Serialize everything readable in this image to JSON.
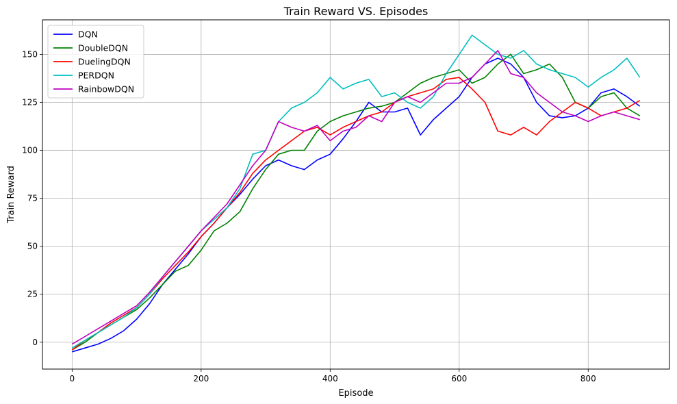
{
  "chart_data": {
    "type": "line",
    "title": "Train Reward VS. Episodes",
    "xlabel": "Episode",
    "ylabel": "Train Reward",
    "xlim": [
      -46,
      926
    ],
    "ylim": [
      -14,
      168
    ],
    "xticks": [
      0,
      200,
      400,
      600,
      800
    ],
    "yticks": [
      0,
      25,
      50,
      75,
      100,
      125,
      150
    ],
    "grid": true,
    "legend_position": "upper-left",
    "series": [
      {
        "name": "DQN",
        "color": "#0000ff",
        "x": [
          0,
          20,
          40,
          60,
          80,
          100,
          120,
          140,
          160,
          180,
          200,
          220,
          240,
          260,
          280,
          300,
          320,
          340,
          360,
          380,
          400,
          420,
          440,
          460,
          480,
          500,
          520,
          540,
          560,
          580,
          600,
          620,
          640,
          660,
          680,
          700,
          720,
          740,
          760,
          780,
          800,
          820,
          840,
          860,
          880
        ],
        "y": [
          -5,
          -3,
          -1,
          2,
          6,
          12,
          20,
          30,
          38,
          46,
          55,
          62,
          70,
          77,
          85,
          92,
          95,
          92,
          90,
          95,
          98,
          106,
          115,
          125,
          120,
          120,
          122,
          108,
          116,
          122,
          128,
          138,
          145,
          148,
          145,
          138,
          125,
          118,
          117,
          118,
          122,
          130,
          132,
          128,
          123
        ]
      },
      {
        "name": "DoubleDQN",
        "color": "#008000",
        "x": [
          0,
          20,
          40,
          60,
          80,
          100,
          120,
          140,
          160,
          180,
          200,
          220,
          240,
          260,
          280,
          300,
          320,
          340,
          360,
          380,
          400,
          420,
          440,
          460,
          480,
          500,
          520,
          540,
          560,
          580,
          600,
          620,
          640,
          660,
          680,
          700,
          720,
          740,
          760,
          780,
          800,
          820,
          840,
          860,
          880
        ],
        "y": [
          -4,
          0,
          5,
          9,
          13,
          17,
          23,
          30,
          37,
          40,
          48,
          58,
          62,
          68,
          80,
          90,
          98,
          100,
          100,
          110,
          115,
          118,
          120,
          122,
          123,
          125,
          130,
          135,
          138,
          140,
          142,
          135,
          138,
          145,
          150,
          140,
          142,
          145,
          138,
          125,
          122,
          128,
          130,
          122,
          118
        ]
      },
      {
        "name": "DuelingDQN",
        "color": "#ff0000",
        "x": [
          0,
          20,
          40,
          60,
          80,
          100,
          120,
          140,
          160,
          180,
          200,
          220,
          240,
          260,
          280,
          300,
          320,
          340,
          360,
          380,
          400,
          420,
          440,
          460,
          480,
          500,
          520,
          540,
          560,
          580,
          600,
          620,
          640,
          660,
          680,
          700,
          720,
          740,
          760,
          780,
          800,
          820,
          840,
          860,
          880
        ],
        "y": [
          -4,
          1,
          5,
          10,
          14,
          18,
          25,
          33,
          40,
          47,
          55,
          62,
          70,
          78,
          88,
          95,
          100,
          105,
          110,
          112,
          108,
          112,
          115,
          118,
          120,
          125,
          128,
          130,
          132,
          137,
          138,
          132,
          125,
          110,
          108,
          112,
          108,
          115,
          120,
          125,
          122,
          118,
          120,
          122,
          126
        ]
      },
      {
        "name": "PERDQN",
        "color": "#00bfbf",
        "x": [
          0,
          20,
          40,
          60,
          80,
          100,
          120,
          140,
          160,
          180,
          200,
          220,
          240,
          260,
          280,
          300,
          320,
          340,
          360,
          380,
          400,
          420,
          440,
          460,
          480,
          500,
          520,
          540,
          560,
          580,
          600,
          620,
          640,
          660,
          680,
          700,
          720,
          740,
          760,
          780,
          800,
          820,
          840,
          860,
          880
        ],
        "y": [
          -3,
          1,
          5,
          9,
          13,
          18,
          25,
          34,
          42,
          50,
          58,
          64,
          70,
          80,
          98,
          100,
          115,
          122,
          125,
          130,
          138,
          132,
          135,
          137,
          128,
          130,
          125,
          122,
          128,
          140,
          150,
          160,
          155,
          150,
          148,
          152,
          145,
          142,
          140,
          138,
          133,
          138,
          142,
          148,
          138
        ]
      },
      {
        "name": "RainbowDQN",
        "color": "#bf00bf",
        "x": [
          0,
          20,
          40,
          60,
          80,
          100,
          120,
          140,
          160,
          180,
          200,
          220,
          240,
          260,
          280,
          300,
          320,
          340,
          360,
          380,
          400,
          420,
          440,
          460,
          480,
          500,
          520,
          540,
          560,
          580,
          600,
          620,
          640,
          660,
          680,
          700,
          720,
          740,
          760,
          780,
          800,
          820,
          840,
          860,
          880
        ],
        "y": [
          -1,
          3,
          7,
          11,
          15,
          19,
          26,
          34,
          42,
          50,
          58,
          65,
          72,
          82,
          92,
          100,
          115,
          112,
          110,
          113,
          105,
          110,
          112,
          118,
          115,
          125,
          128,
          125,
          130,
          135,
          135,
          138,
          145,
          152,
          140,
          138,
          130,
          125,
          120,
          118,
          115,
          118,
          120,
          118,
          116
        ]
      }
    ]
  }
}
